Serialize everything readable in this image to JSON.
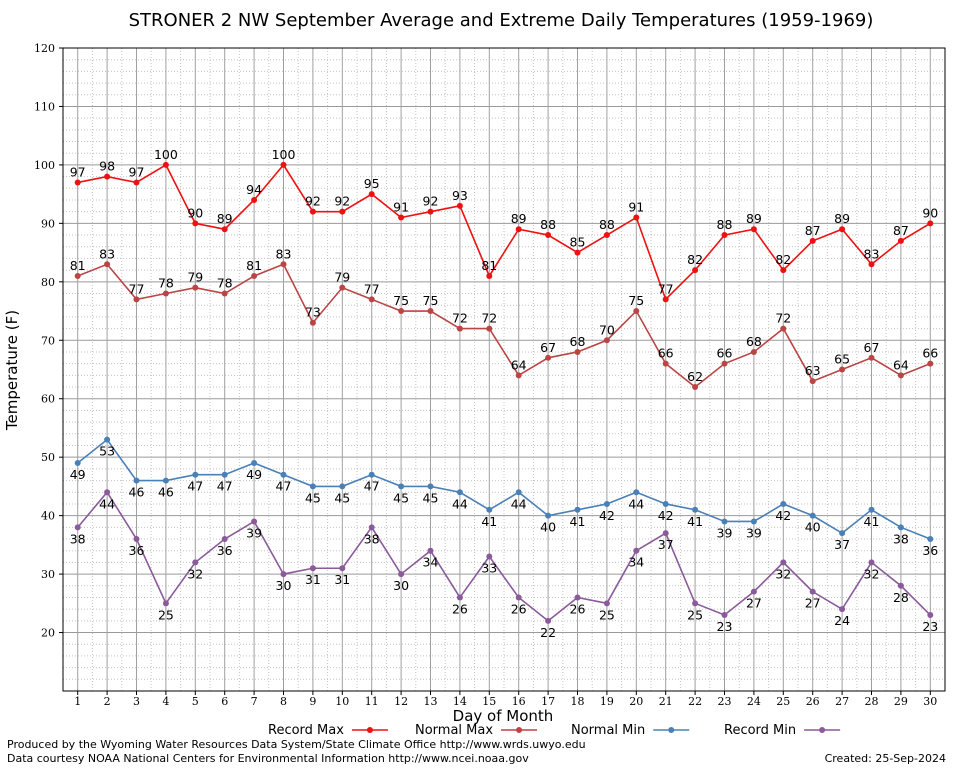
{
  "chart_data": {
    "type": "line",
    "title": "STRONER 2 NW September Average and Extreme Daily Temperatures (1959-1969)",
    "xlabel": "Day of Month",
    "ylabel": "Temperature (F)",
    "ylim": [
      10,
      120
    ],
    "xlim": [
      0.5,
      30.5
    ],
    "y_ticks": [
      20,
      30,
      40,
      50,
      60,
      70,
      80,
      90,
      100,
      110,
      120
    ],
    "x": [
      1,
      2,
      3,
      4,
      5,
      6,
      7,
      8,
      9,
      10,
      11,
      12,
      13,
      14,
      15,
      16,
      17,
      18,
      19,
      20,
      21,
      22,
      23,
      24,
      25,
      26,
      27,
      28,
      29,
      30
    ],
    "grid": true,
    "legend_position": "bottom",
    "series": [
      {
        "name": "Record Max",
        "color": "#ee1111",
        "label_pos": "above",
        "values": [
          97,
          98,
          97,
          100,
          90,
          89,
          94,
          100,
          92,
          92,
          95,
          91,
          92,
          93,
          81,
          89,
          88,
          85,
          88,
          91,
          77,
          82,
          88,
          89,
          82,
          87,
          89,
          83,
          87,
          90
        ]
      },
      {
        "name": "Normal Max",
        "color": "#bb4444",
        "label_pos": "above",
        "values": [
          81,
          83,
          77,
          78,
          79,
          78,
          81,
          83,
          73,
          79,
          77,
          75,
          75,
          72,
          72,
          64,
          67,
          68,
          70,
          75,
          66,
          62,
          66,
          68,
          72,
          63,
          65,
          67,
          64,
          66
        ]
      },
      {
        "name": "Normal Min",
        "color": "#4a80b8",
        "label_pos": "below",
        "values": [
          49,
          53,
          46,
          46,
          47,
          47,
          49,
          47,
          45,
          45,
          47,
          45,
          45,
          44,
          41,
          44,
          40,
          41,
          42,
          44,
          42,
          41,
          39,
          39,
          42,
          40,
          37,
          41,
          38,
          36
        ]
      },
      {
        "name": "Record Min",
        "color": "#8a5a9a",
        "label_pos": "below",
        "values": [
          38,
          44,
          36,
          25,
          32,
          36,
          39,
          30,
          31,
          31,
          38,
          30,
          34,
          26,
          33,
          26,
          22,
          26,
          25,
          34,
          37,
          25,
          23,
          27,
          32,
          27,
          24,
          32,
          28,
          23
        ]
      }
    ]
  },
  "footer": {
    "produced_by": "Produced by the Wyoming Water Resources Data System/State Climate Office http://www.wrds.uwyo.edu",
    "courtesy": "Data courtesy NOAA National Centers for Environmental Information http://www.ncei.noaa.gov",
    "created": "Created:  25-Sep-2024"
  }
}
